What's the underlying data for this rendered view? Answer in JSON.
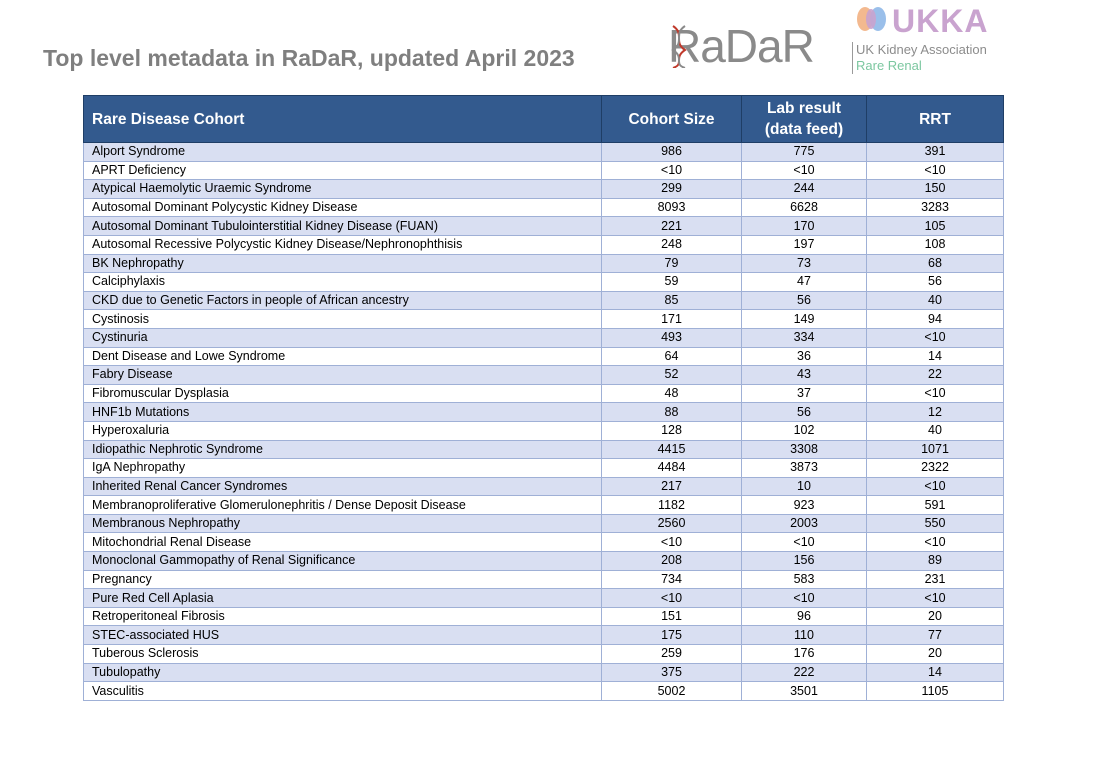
{
  "title": "Top level metadata in RaDaR, updated April 2023",
  "logos": {
    "radar": "RaDaR",
    "ukka_word": "UKKA",
    "ukka_line1": "UK Kidney Association",
    "ukka_line2": "Rare Renal"
  },
  "table": {
    "headers": {
      "cohort": "Rare Disease Cohort",
      "size": "Cohort Size",
      "lab_line1": "Lab result",
      "lab_line2": "(data feed)",
      "rrt": "RRT"
    },
    "rows": [
      {
        "name": "Alport Syndrome",
        "size": "986",
        "lab": "775",
        "rrt": "391"
      },
      {
        "name": "APRT Deficiency",
        "size": "<10",
        "lab": "<10",
        "rrt": "<10"
      },
      {
        "name": "Atypical Haemolytic Uraemic Syndrome",
        "size": "299",
        "lab": "244",
        "rrt": "150"
      },
      {
        "name": "Autosomal Dominant Polycystic Kidney Disease",
        "size": "8093",
        "lab": "6628",
        "rrt": "3283"
      },
      {
        "name": "Autosomal Dominant Tubulointerstitial Kidney Disease (FUAN)",
        "size": "221",
        "lab": "170",
        "rrt": "105"
      },
      {
        "name": "Autosomal Recessive Polycystic Kidney Disease/Nephronophthisis",
        "size": "248",
        "lab": "197",
        "rrt": "108"
      },
      {
        "name": "BK Nephropathy",
        "size": "79",
        "lab": "73",
        "rrt": "68"
      },
      {
        "name": "Calciphylaxis",
        "size": "59",
        "lab": "47",
        "rrt": "56"
      },
      {
        "name": "CKD due to Genetic Factors in people of African ancestry",
        "size": "85",
        "lab": "56",
        "rrt": "40"
      },
      {
        "name": "Cystinosis",
        "size": "171",
        "lab": "149",
        "rrt": "94"
      },
      {
        "name": "Cystinuria",
        "size": "493",
        "lab": "334",
        "rrt": "<10"
      },
      {
        "name": "Dent Disease and Lowe Syndrome",
        "size": "64",
        "lab": "36",
        "rrt": "14"
      },
      {
        "name": "Fabry Disease",
        "size": "52",
        "lab": "43",
        "rrt": "22"
      },
      {
        "name": "Fibromuscular Dysplasia",
        "size": "48",
        "lab": "37",
        "rrt": "<10"
      },
      {
        "name": "HNF1b Mutations",
        "size": "88",
        "lab": "56",
        "rrt": "12"
      },
      {
        "name": "Hyperoxaluria",
        "size": "128",
        "lab": "102",
        "rrt": "40"
      },
      {
        "name": "Idiopathic Nephrotic Syndrome",
        "size": "4415",
        "lab": "3308",
        "rrt": "1071"
      },
      {
        "name": "IgA Nephropathy",
        "size": "4484",
        "lab": "3873",
        "rrt": "2322"
      },
      {
        "name": "Inherited Renal Cancer Syndromes",
        "size": "217",
        "lab": "10",
        "rrt": "<10"
      },
      {
        "name": "Membranoproliferative Glomerulonephritis / Dense Deposit Disease",
        "size": "1182",
        "lab": "923",
        "rrt": "591"
      },
      {
        "name": "Membranous Nephropathy",
        "size": "2560",
        "lab": "2003",
        "rrt": "550"
      },
      {
        "name": "Mitochondrial Renal Disease",
        "size": "<10",
        "lab": "<10",
        "rrt": "<10"
      },
      {
        "name": "Monoclonal Gammopathy of Renal Significance",
        "size": "208",
        "lab": "156",
        "rrt": "89"
      },
      {
        "name": "Pregnancy",
        "size": "734",
        "lab": "583",
        "rrt": "231"
      },
      {
        "name": "Pure Red Cell Aplasia",
        "size": "<10",
        "lab": "<10",
        "rrt": "<10"
      },
      {
        "name": "Retroperitoneal Fibrosis",
        "size": "151",
        "lab": "96",
        "rrt": "20"
      },
      {
        "name": "STEC-associated HUS",
        "size": "175",
        "lab": "110",
        "rrt": "77"
      },
      {
        "name": "Tuberous Sclerosis",
        "size": "259",
        "lab": "176",
        "rrt": "20"
      },
      {
        "name": "Tubulopathy",
        "size": "375",
        "lab": "222",
        "rrt": "14"
      },
      {
        "name": "Vasculitis",
        "size": "5002",
        "lab": "3501",
        "rrt": "1105"
      }
    ]
  },
  "colors": {
    "header_bg": "#335a8e",
    "band_bg": "#d9dff2",
    "title_text": "#7f7f7f"
  }
}
